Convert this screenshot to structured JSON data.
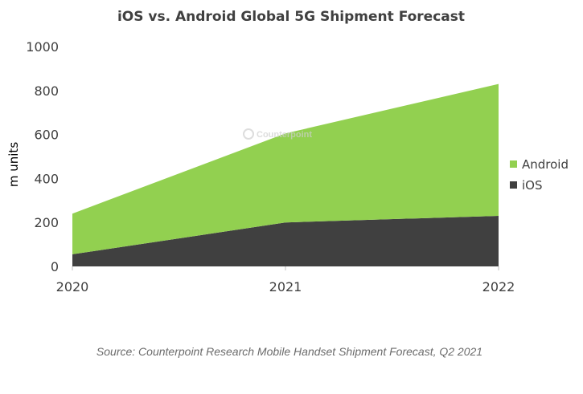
{
  "chart_data": {
    "type": "area",
    "stacked": true,
    "title": "iOS vs. Android Global 5G Shipment Forecast",
    "ylabel": "m units",
    "xlabel": "",
    "categories": [
      "2020",
      "2021",
      "2022"
    ],
    "ylim": [
      0,
      1000
    ],
    "yticks": [
      "0",
      "200",
      "400",
      "600",
      "800",
      "1000"
    ],
    "grid": false,
    "legend_position": "right",
    "series": [
      {
        "name": "iOS",
        "values": [
          55,
          200,
          230
        ],
        "color": "#404040"
      },
      {
        "name": "Android",
        "values": [
          185,
          405,
          600
        ],
        "color": "#92D050"
      }
    ],
    "source": "Source: Counterpoint Research Mobile Handset Shipment Forecast, Q2 2021",
    "watermark": "Counterpoint"
  }
}
